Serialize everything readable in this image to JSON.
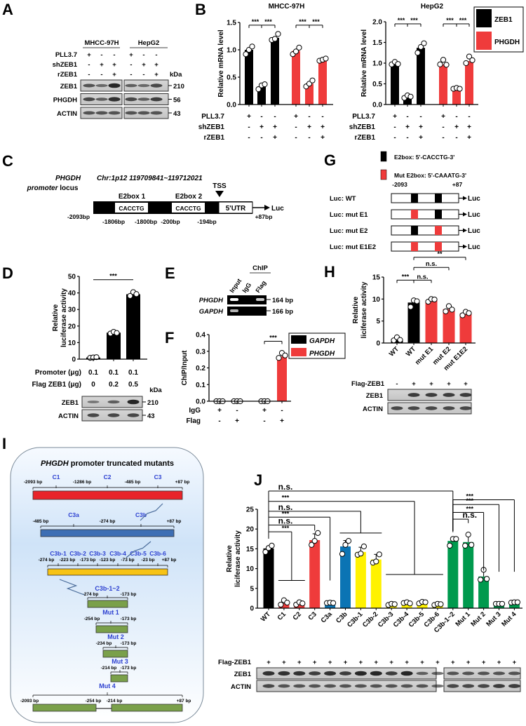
{
  "panel_letters": {
    "A": "A",
    "B": "B",
    "C": "C",
    "D": "D",
    "E": "E",
    "F": "F",
    "G": "G",
    "H": "H",
    "I": "I",
    "J": "J"
  },
  "A": {
    "cell_lines": [
      "MHCC-97H",
      "HepG2"
    ],
    "rows": [
      {
        "label": "PLL3.7",
        "values": [
          "+",
          "-",
          "-",
          "+",
          "-",
          "-"
        ]
      },
      {
        "label": "shZEB1",
        "values": [
          "-",
          "+",
          "+",
          "-",
          "+",
          "+"
        ]
      },
      {
        "label": "rZEB1",
        "values": [
          "-",
          "-",
          "+",
          "-",
          "-",
          "+"
        ]
      }
    ],
    "kda_label": "kDa",
    "blots": [
      {
        "label": "ZEB1",
        "kda": "210"
      },
      {
        "label": "PHGDH",
        "kda": "56"
      },
      {
        "label": "ACTIN",
        "kda": "43"
      }
    ]
  },
  "C": {
    "gene": "PHGDH",
    "promoter_word": "promoter",
    "locus_word": "locus",
    "chr": "Chr:1p12   119709841~119712021",
    "tss": "TSS",
    "e2box1": "E2box 1",
    "e2box2": "E2box 2",
    "seq1": "CACCTG",
    "seq2": "CACCTG",
    "utr": "5'UTR",
    "luc": "Luc",
    "positions": [
      "-2093bp",
      "-1806bp",
      "-1800bp",
      "-200bp",
      "-194bp",
      "+87bp"
    ]
  },
  "G": {
    "legend": [
      {
        "label": "E2box: 5'-CACCTG-3'",
        "color": "#000000"
      },
      {
        "label": "Mut E2box: 5'-CAAATG-3'",
        "color": "#ef3b3b"
      }
    ],
    "start": "-2093",
    "end": "+87",
    "luc": "Luc",
    "constructs": [
      {
        "label": "Luc: WT",
        "e1": "wt",
        "e2": "wt"
      },
      {
        "label": "Luc: mut E1",
        "e1": "mut",
        "e2": "wt"
      },
      {
        "label": "Luc: mut E2",
        "e1": "wt",
        "e2": "mut"
      },
      {
        "label": "Luc: mut E1E2",
        "e1": "mut",
        "e2": "mut"
      }
    ]
  },
  "D": {
    "kda_label": "kDa",
    "blots": [
      {
        "label": "ZEB1",
        "kda": "210"
      },
      {
        "label": "ACTIN",
        "kda": "43"
      }
    ]
  },
  "E": {
    "chip": "ChIP",
    "lanes": [
      "Input",
      "IgG",
      "Flag"
    ],
    "rows": [
      {
        "label": "PHGDH",
        "size": "164 bp"
      },
      {
        "label": "GAPDH",
        "size": "166 bp"
      }
    ]
  },
  "H": {
    "flag_label": "Flag-ZEB1",
    "flag": [
      "-",
      "+",
      "+",
      "+",
      "+"
    ],
    "blots": [
      {
        "label": "ZEB1"
      },
      {
        "label": "ACTIN"
      }
    ]
  },
  "I": {
    "title_gene": "PHGDH",
    "title_rest": " promoter truncated mutants",
    "constructs": [
      {
        "names": [
          "C1",
          "C2",
          "C3"
        ],
        "positions": [
          "-2093 bp",
          "-1286 bp",
          "-485 bp",
          "+87 bp"
        ],
        "color": "#e8242a"
      },
      {
        "names": [
          "C3a",
          "C3b"
        ],
        "positions": [
          "-485 bp",
          "-274 bp",
          "+87 bp"
        ],
        "color": "#3d6eb4"
      },
      {
        "names": [
          "C3b-1",
          "C3b-2",
          "C3b-3",
          "C3b-4",
          "C3b-5",
          "C3b-6"
        ],
        "positions": [
          "-274 bp",
          "-223 bp",
          "-173 bp",
          "-123 bp",
          "-73 bp",
          "-23 bp",
          "+87 bp"
        ],
        "color": "#f7c315"
      },
      {
        "names": [
          "C3b-1~2"
        ],
        "positions": [
          "-274 bp",
          "-173 bp"
        ],
        "color": "#7aa04a"
      },
      {
        "names": [
          "Mut 1"
        ],
        "positions": [
          "-254 bp",
          "-173 bp"
        ],
        "color": "#7aa04a"
      },
      {
        "names": [
          "Mut 2"
        ],
        "positions": [
          "-234 bp",
          "-173 bp"
        ],
        "color": "#7aa04a"
      },
      {
        "names": [
          "Mut 3"
        ],
        "positions": [
          "-214 bp",
          "-173 bp"
        ],
        "color": "#7aa04a"
      },
      {
        "names": [
          "Mut 4"
        ],
        "positions": [
          "-2093 bp",
          "-254 bp",
          "-214 bp",
          "+87 bp"
        ],
        "color": "#7aa04a"
      }
    ]
  },
  "J": {
    "flag_label": "Flag-ZEB1",
    "flag": [
      "+",
      "+",
      "+",
      "+",
      "+",
      "+",
      "+",
      "+",
      "+",
      "+",
      "+",
      "+",
      "+",
      "+",
      "+",
      "+",
      "+"
    ],
    "blots": [
      {
        "label": "ZEB1"
      },
      {
        "label": "ACTIN"
      }
    ]
  },
  "chart_data": [
    {
      "id": "B-MHCC-97H",
      "type": "bar",
      "title": "MHCC-97H",
      "ylabel_lines": [
        "Relative mRNA level"
      ],
      "ylim": [
        0,
        1.5
      ],
      "yticks": [
        0,
        0.5,
        1,
        1.5
      ],
      "ytick_labels": [
        "0.0",
        "0.5",
        "1.0",
        "1.5"
      ],
      "values": [
        1.0,
        0.33,
        1.22,
        0.98,
        0.38,
        0.81
      ],
      "points": [
        [
          0.92,
          1.0,
          1.06
        ],
        [
          0.28,
          0.35,
          0.37
        ],
        [
          1.18,
          1.2,
          1.29
        ],
        [
          0.92,
          0.97,
          1.04
        ],
        [
          0.33,
          0.38,
          0.44
        ],
        [
          0.8,
          0.82,
          0.84
        ]
      ],
      "colors": [
        "#000000",
        "#000000",
        "#000000",
        "#ef3b3b",
        "#ef3b3b",
        "#ef3b3b"
      ],
      "conditions": [
        {
          "label": "PLL3.7",
          "values": [
            "+",
            "-",
            "-",
            "+",
            "-",
            "-"
          ]
        },
        {
          "label": "shZEB1",
          "values": [
            "-",
            "+",
            "+",
            "-",
            "+",
            "+"
          ]
        },
        {
          "label": "rZEB1",
          "values": [
            "-",
            "-",
            "+",
            "-",
            "-",
            "+"
          ]
        }
      ],
      "annotations": [
        {
          "from": 0,
          "to": 1,
          "y": 1.45,
          "text": "***"
        },
        {
          "from": 1,
          "to": 2,
          "y": 1.45,
          "text": "***"
        },
        {
          "from": 3,
          "to": 4,
          "y": 1.45,
          "text": "***"
        },
        {
          "from": 4,
          "to": 5,
          "y": 1.45,
          "text": "***"
        }
      ]
    },
    {
      "id": "B-HepG2",
      "type": "bar",
      "title": "HepG2",
      "ylabel_lines": [
        "Relative mRNA level"
      ],
      "ylim": [
        0,
        2
      ],
      "yticks": [
        0,
        0.5,
        1,
        1.5,
        2
      ],
      "ytick_labels": [
        "0.0",
        "0.5",
        "1.0",
        "1.5",
        "2.0"
      ],
      "values": [
        1.0,
        0.18,
        1.37,
        0.97,
        0.38,
        1.05
      ],
      "points": [
        [
          0.97,
          1.03,
          0.98
        ],
        [
          0.16,
          0.22,
          0.19
        ],
        [
          1.25,
          1.39,
          1.48
        ],
        [
          0.97,
          1.08,
          0.96
        ],
        [
          0.38,
          0.4,
          0.38
        ],
        [
          1.0,
          1.16,
          1.07
        ]
      ],
      "colors": [
        "#000000",
        "#000000",
        "#000000",
        "#ef3b3b",
        "#ef3b3b",
        "#ef3b3b"
      ],
      "conditions": [
        {
          "label": "PLL3.7",
          "values": [
            "+",
            "-",
            "-",
            "+",
            "-",
            "-"
          ]
        },
        {
          "label": "shZEB1",
          "values": [
            "-",
            "+",
            "+",
            "-",
            "+",
            "+"
          ]
        },
        {
          "label": "rZEB1",
          "values": [
            "-",
            "-",
            "+",
            "-",
            "-",
            "+"
          ]
        }
      ],
      "legend": [
        {
          "label": "ZEB1",
          "color": "#000000"
        },
        {
          "label": "PHGDH",
          "color": "#ef3b3b"
        }
      ],
      "annotations": [
        {
          "from": 0,
          "to": 1,
          "y": 1.95,
          "text": "***"
        },
        {
          "from": 1,
          "to": 2,
          "y": 1.95,
          "text": "***"
        },
        {
          "from": 3,
          "to": 4,
          "y": 1.95,
          "text": "***"
        },
        {
          "from": 4,
          "to": 5,
          "y": 1.95,
          "text": "***"
        }
      ]
    },
    {
      "id": "D",
      "type": "bar",
      "ylabel_lines": [
        "Relative",
        "luciferase activity"
      ],
      "ylim": [
        0,
        50
      ],
      "yticks": [
        0,
        10,
        20,
        30,
        40,
        50
      ],
      "ytick_labels": [
        "0",
        "10",
        "20",
        "30",
        "40",
        "50"
      ],
      "values": [
        1.0,
        16.0,
        39.2
      ],
      "points": [
        [
          0.8,
          1.0,
          1.2
        ],
        [
          15.5,
          16.5,
          15.8
        ],
        [
          38.2,
          40.5,
          39.3
        ]
      ],
      "colors": [
        "#000000",
        "#000000",
        "#000000"
      ],
      "conditions": [
        {
          "label": "Promoter (μg)",
          "values": [
            "0.1",
            "0.1",
            "0.1"
          ]
        },
        {
          "label": "Flag ZEB1 (μg)",
          "values": [
            "0",
            "0.2",
            "0.5"
          ]
        }
      ],
      "annotations": [
        {
          "from": 0,
          "to": 2,
          "y": 48,
          "text": "***",
          "plain": true
        }
      ]
    },
    {
      "id": "F",
      "type": "bar",
      "ylabel_lines": [
        "ChIP/Input"
      ],
      "ylim": [
        0,
        0.4
      ],
      "yticks": [
        0,
        0.1,
        0.2,
        0.3,
        0.4
      ],
      "ytick_labels": [
        "0.0",
        "0.1",
        "0.2",
        "0.3",
        "0.4"
      ],
      "values": [
        0.0,
        0.0,
        0.0,
        0.27
      ],
      "points": [
        [
          0,
          0,
          0
        ],
        [
          0,
          0,
          0
        ],
        [
          0,
          0,
          0
        ],
        [
          0.26,
          0.29,
          0.275
        ]
      ],
      "colors": [
        "#000000",
        "#000000",
        "#000000",
        "#ef3b3b"
      ],
      "conditions": [
        {
          "label": "IgG",
          "values": [
            "+",
            "-",
            "+",
            "-"
          ]
        },
        {
          "label": "Flag",
          "values": [
            "-",
            "+",
            "-",
            "+"
          ]
        }
      ],
      "legend": [
        {
          "label": "GAPDH",
          "color": "#000000"
        },
        {
          "label": "PHGDH",
          "color": "#ef3b3b"
        }
      ],
      "annotations": [
        {
          "from": 2,
          "to": 3,
          "y": 0.36,
          "text": "***"
        }
      ]
    },
    {
      "id": "H",
      "type": "bar",
      "ylabel_lines": [
        "Relative",
        "liciferase activity"
      ],
      "ylim": [
        0,
        15
      ],
      "yticks": [
        0,
        5,
        10,
        15
      ],
      "ytick_labels": [
        "0",
        "5",
        "10",
        "15"
      ],
      "categories": [
        "WT",
        "WT",
        "mut E1",
        "mut E2",
        "mut E1E2"
      ],
      "values": [
        0.9,
        9.2,
        9.7,
        7.7,
        6.7
      ],
      "points": [
        [
          0.6,
          1.3,
          0.7
        ],
        [
          8.2,
          9.7,
          9.5
        ],
        [
          9.4,
          10.0,
          9.9
        ],
        [
          7.2,
          8.4,
          7.6
        ],
        [
          6.3,
          7.1,
          6.8
        ]
      ],
      "colors": [
        "#000000",
        "#000000",
        "#ef3b3b",
        "#ef3b3b",
        "#ef3b3b"
      ],
      "annotations": [
        {
          "from": 0,
          "to": 1,
          "y": 14.3,
          "text": "***"
        },
        {
          "from": 1,
          "to": 2,
          "y": 14.3,
          "text": "n.s."
        },
        {
          "from": 1,
          "to": 3,
          "y": 17.2,
          "text": "n.s."
        },
        {
          "from": 1,
          "to": 4,
          "y": 19.5,
          "text": "**"
        }
      ]
    },
    {
      "id": "J",
      "type": "bar",
      "ylabel_lines": [
        "Relative",
        "liciferase activity"
      ],
      "ylim": [
        0,
        25
      ],
      "yticks": [
        0,
        5,
        10,
        15,
        20,
        25
      ],
      "ytick_labels": [
        "0",
        "5",
        "10",
        "15",
        "20",
        "25"
      ],
      "categories": [
        "WT",
        "C1",
        "C2",
        "C3",
        "C3a",
        "C3b",
        "C3b-1",
        "C3b-2",
        "C3b-3",
        "C3b-4",
        "C3b-5",
        "C3b-6",
        "C3b-1~2",
        "Mut 1",
        "Mut 2",
        "Mut 3",
        "Mut 4"
      ],
      "values": [
        15.1,
        1.2,
        1.1,
        17.2,
        1.3,
        15.6,
        14.2,
        12.3,
        1.0,
        1.3,
        1.4,
        1.0,
        17.0,
        16.7,
        8.0,
        1.1,
        1.5
      ],
      "errors": [
        0.6,
        0.7,
        0.5,
        1.6,
        0.3,
        1.5,
        1.2,
        1.3,
        0.4,
        0.4,
        0.4,
        0.3,
        0.8,
        1.7,
        1.5,
        0.2,
        0.3
      ],
      "points": [
        [
          14.2,
          15.2,
          15.8
        ],
        [
          0.9,
          2.0,
          1.4
        ],
        [
          0.9,
          1.5,
          1.2
        ],
        [
          16.0,
          17.0,
          19.0
        ],
        [
          1.3,
          1.4,
          1.3
        ],
        [
          13.7,
          16.0,
          17.0
        ],
        [
          13.5,
          13.8,
          15.6
        ],
        [
          11.5,
          11.8,
          13.6
        ],
        [
          0.8,
          1.1,
          1.0
        ],
        [
          1.3,
          1.5,
          1.2
        ],
        [
          1.2,
          1.6,
          1.5
        ],
        [
          0.8,
          1.1,
          1.0
        ],
        [
          15.8,
          17.5,
          17.5
        ],
        [
          15.8,
          18.6,
          16.0
        ],
        [
          7.2,
          9.7,
          7.4
        ],
        [
          1.1,
          1.1,
          1.1
        ],
        [
          1.4,
          1.5,
          1.5
        ]
      ],
      "colors": [
        "#000000",
        "#ef3b3b",
        "#ef3b3b",
        "#ef3b3b",
        "#0b74b4",
        "#0b74b4",
        "#fff200",
        "#fff200",
        "#fff200",
        "#fff200",
        "#fff200",
        "#fff200",
        "#009a4e",
        "#009a4e",
        "#009a4e",
        "#009a4e",
        "#009a4e"
      ],
      "annotations": [
        {
          "from": 0,
          "to": [
            1,
            2
          ],
          "y": 19.3,
          "drop": 7,
          "text": "***"
        },
        {
          "from": 0,
          "to": [
            3
          ],
          "y": 21,
          "drop": 19.6,
          "text": "n.s."
        },
        {
          "from": 0,
          "to": [
            4
          ],
          "y": 23,
          "drop": 7,
          "text": "***"
        },
        {
          "from": 0,
          "to": [
            5,
            6,
            7
          ],
          "y": 24.5,
          "drop": 19,
          "text": "n.s."
        },
        {
          "from": 0,
          "to": [
            8,
            9,
            10,
            11
          ],
          "y": 27,
          "drop": 8.5,
          "text": "***"
        },
        {
          "from": 0,
          "to": [
            12
          ],
          "y": 29.6,
          "drop": 19.2,
          "text": "n.s."
        },
        {
          "from": 12,
          "to": [
            13
          ],
          "y": 22.5,
          "drop": 21.5,
          "text": "n.s."
        },
        {
          "from": 12,
          "to": [
            14
          ],
          "y": 24.2,
          "drop": 9.5,
          "text": "***"
        },
        {
          "from": 12,
          "to": [
            15
          ],
          "y": 26.2,
          "drop": 9.2,
          "text": "***"
        },
        {
          "from": 12,
          "to": [
            16
          ],
          "y": 27.4,
          "drop": 9.2,
          "text": "***"
        }
      ]
    }
  ]
}
